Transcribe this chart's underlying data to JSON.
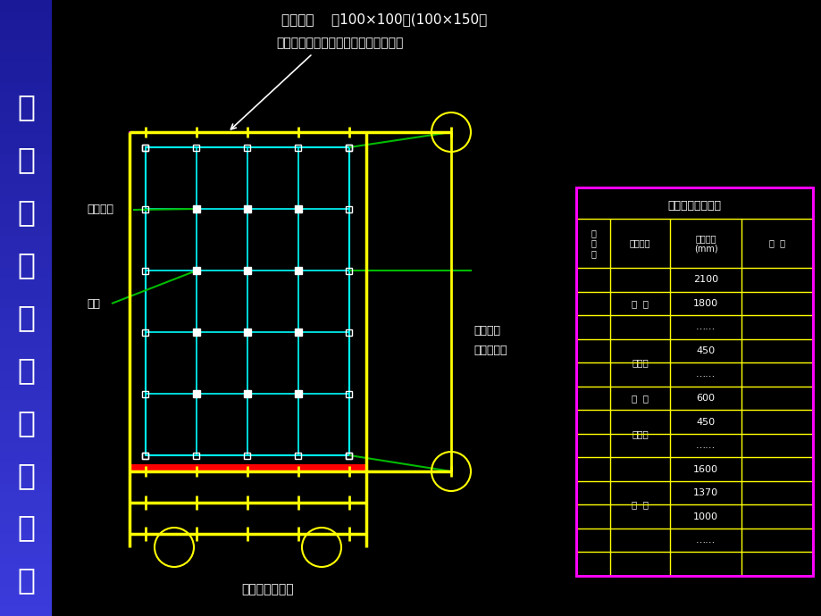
{
  "bg_color": "#000000",
  "sidebar_text": [
    "规",
    "范",
    "化",
    "施",
    "工",
    "模",
    "式",
    "简",
    "介",
    "一"
  ],
  "title_top1": "早拆柱头    （100×100）(100×150）",
  "title_top2": "柱头板直接顶在混凝土楼板或胶合板上",
  "title_bottom": "平面格构示意图",
  "label_zaichazhutou": "早拆柱头",
  "label_tuojia": "托架",
  "label_qiangpi": "墙皮距管",
  "label_zhongxin": "中心的距离",
  "table_title": "各房间材料用量表",
  "yellow_color": "#ffff00",
  "cyan_color": "#00ffff",
  "magenta_color": "#ff00ff",
  "green_color": "#00bb00",
  "white_color": "#ffffff",
  "red_color": "#ff0000"
}
